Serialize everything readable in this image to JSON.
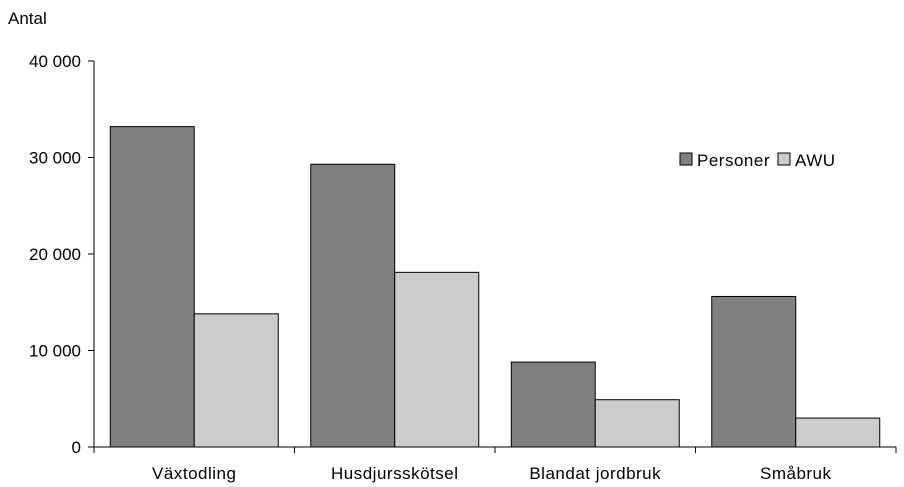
{
  "chart_data": {
    "type": "bar",
    "ylabel": "Antal",
    "xlabel": "",
    "title": "",
    "ylim": [
      0,
      40000
    ],
    "yticks": [
      0,
      10000,
      20000,
      30000,
      40000
    ],
    "ytick_labels": [
      "0",
      "10 000",
      "20 000",
      "30 000",
      "40 000"
    ],
    "grid": false,
    "legend_position": "top-right",
    "categories": [
      "Växtodling",
      "Husdjursskötsel",
      "Blandat jordbruk",
      "Småbruk"
    ],
    "series": [
      {
        "name": "Personer",
        "color": "#808080",
        "values": [
          33200,
          29300,
          8800,
          15600
        ]
      },
      {
        "name": "AWU",
        "color": "#cccccc",
        "values": [
          13800,
          18100,
          4900,
          3000
        ]
      }
    ]
  }
}
